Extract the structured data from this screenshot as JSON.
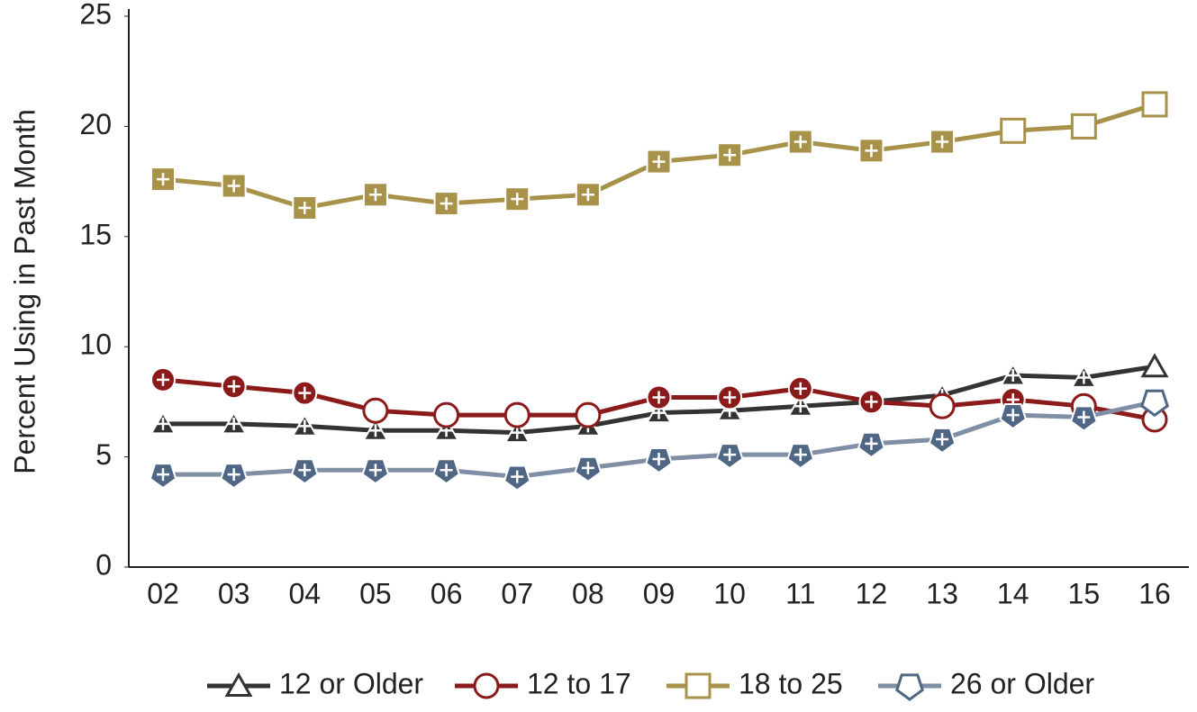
{
  "chart_data": {
    "type": "line",
    "y_label": "Percent Using in Past Month",
    "categories": [
      "02",
      "03",
      "04",
      "05",
      "06",
      "07",
      "08",
      "09",
      "10",
      "11",
      "12",
      "13",
      "14",
      "15",
      "16"
    ],
    "ylim": [
      0,
      25
    ],
    "yticks": [
      0,
      5,
      10,
      15,
      20,
      25
    ],
    "grid": false,
    "series": [
      {
        "name": "12 or Older",
        "color": "#333333",
        "line_color": "#333333",
        "marker": "triangle",
        "values": [
          6.5,
          6.5,
          6.4,
          6.2,
          6.2,
          6.1,
          6.4,
          7.0,
          7.1,
          7.3,
          7.5,
          7.8,
          8.7,
          8.6,
          9.1
        ],
        "filled": [
          true,
          true,
          true,
          true,
          true,
          true,
          true,
          true,
          true,
          true,
          true,
          true,
          true,
          true,
          false
        ]
      },
      {
        "name": "12 to 17",
        "color": "#8b1a1a",
        "line_color": "#8b1a1a",
        "marker": "circle",
        "values": [
          8.5,
          8.2,
          7.9,
          7.1,
          6.9,
          6.9,
          6.9,
          7.7,
          7.7,
          8.1,
          7.5,
          7.3,
          7.6,
          7.3,
          6.7
        ],
        "filled": [
          true,
          true,
          true,
          false,
          false,
          false,
          false,
          true,
          true,
          true,
          true,
          false,
          true,
          false,
          false
        ]
      },
      {
        "name": "18 to 25",
        "color": "#a8924a",
        "line_color": "#a8924a",
        "marker": "square",
        "values": [
          17.6,
          17.3,
          16.3,
          16.9,
          16.5,
          16.7,
          16.9,
          18.4,
          18.7,
          19.3,
          18.9,
          19.3,
          19.8,
          20.0,
          21.0
        ],
        "filled": [
          true,
          true,
          true,
          true,
          true,
          true,
          true,
          true,
          true,
          true,
          true,
          true,
          false,
          false,
          false
        ]
      },
      {
        "name": "26 or Older",
        "color": "#4f6784",
        "line_color": "#7f8fa6",
        "marker": "pentagon",
        "values": [
          4.2,
          4.2,
          4.4,
          4.4,
          4.4,
          4.1,
          4.5,
          4.9,
          5.1,
          5.1,
          5.6,
          5.8,
          6.9,
          6.8,
          7.5
        ],
        "filled": [
          true,
          true,
          true,
          true,
          true,
          true,
          true,
          true,
          true,
          true,
          true,
          true,
          true,
          true,
          false
        ]
      }
    ]
  }
}
